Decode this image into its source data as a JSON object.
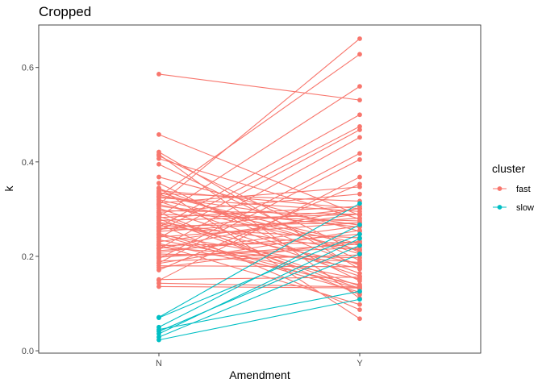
{
  "chart_data": {
    "type": "line",
    "title": "Cropped",
    "xlabel": "Amendment",
    "ylabel": "k",
    "categories": [
      "N",
      "Y"
    ],
    "ylim": [
      -0.005,
      0.69
    ],
    "yticks": [
      0.0,
      0.2,
      0.4,
      0.6
    ],
    "ytick_labels": [
      "0.0",
      "0.2",
      "0.4",
      "0.6"
    ],
    "grid": false,
    "legend": {
      "title": "cluster",
      "position": "right"
    },
    "colors": {
      "fast": "#F8766D",
      "slow": "#00BFC4"
    },
    "series": [
      {
        "name": "fast",
        "pairs": [
          [
            0.586,
            0.531
          ],
          [
            0.458,
            0.287
          ],
          [
            0.421,
            0.173
          ],
          [
            0.416,
            0.111
          ],
          [
            0.413,
            0.208
          ],
          [
            0.407,
            0.279
          ],
          [
            0.395,
            0.191
          ],
          [
            0.368,
            0.253
          ],
          [
            0.355,
            0.148
          ],
          [
            0.344,
            0.181
          ],
          [
            0.339,
            0.301
          ],
          [
            0.336,
            0.205
          ],
          [
            0.333,
            0.317
          ],
          [
            0.331,
            0.226
          ],
          [
            0.327,
            0.266
          ],
          [
            0.324,
            0.295
          ],
          [
            0.32,
            0.223
          ],
          [
            0.317,
            0.164
          ],
          [
            0.313,
            0.347
          ],
          [
            0.31,
            0.214
          ],
          [
            0.306,
            0.262
          ],
          [
            0.302,
            0.158
          ],
          [
            0.297,
            0.289
          ],
          [
            0.293,
            0.119
          ],
          [
            0.289,
            0.275
          ],
          [
            0.285,
            0.137
          ],
          [
            0.282,
            0.306
          ],
          [
            0.279,
            0.132
          ],
          [
            0.276,
            0.289
          ],
          [
            0.272,
            0.213
          ],
          [
            0.268,
            0.087
          ],
          [
            0.264,
            0.271
          ],
          [
            0.26,
            0.239
          ],
          [
            0.257,
            0.301
          ],
          [
            0.253,
            0.281
          ],
          [
            0.249,
            0.131
          ],
          [
            0.246,
            0.175
          ],
          [
            0.241,
            0.271
          ],
          [
            0.235,
            0.152
          ],
          [
            0.231,
            0.29
          ],
          [
            0.227,
            0.14
          ],
          [
            0.223,
            0.23
          ],
          [
            0.219,
            0.187
          ],
          [
            0.216,
            0.302
          ],
          [
            0.212,
            0.247
          ],
          [
            0.208,
            0.264
          ],
          [
            0.205,
            0.197
          ],
          [
            0.201,
            0.218
          ],
          [
            0.198,
            0.226
          ],
          [
            0.19,
            0.203
          ],
          [
            0.185,
            0.255
          ],
          [
            0.18,
            0.178
          ],
          [
            0.176,
            0.232
          ],
          [
            0.151,
            0.156
          ],
          [
            0.143,
            0.135
          ],
          [
            0.136,
            0.133
          ],
          [
            0.31,
            0.661
          ],
          [
            0.327,
            0.628
          ],
          [
            0.284,
            0.56
          ],
          [
            0.262,
            0.5
          ],
          [
            0.254,
            0.475
          ],
          [
            0.239,
            0.468
          ],
          [
            0.216,
            0.452
          ],
          [
            0.195,
            0.418
          ],
          [
            0.186,
            0.405
          ],
          [
            0.149,
            0.368
          ],
          [
            0.171,
            0.353
          ],
          [
            0.345,
            0.068
          ],
          [
            0.293,
            0.332
          ],
          [
            0.27,
            0.184
          ],
          [
            0.245,
            0.124
          ],
          [
            0.224,
            0.098
          ]
        ]
      },
      {
        "name": "slow",
        "pairs": [
          [
            0.071,
            0.312
          ],
          [
            0.07,
            0.247
          ],
          [
            0.05,
            0.267
          ],
          [
            0.045,
            0.126
          ],
          [
            0.041,
            0.223
          ],
          [
            0.036,
            0.238
          ],
          [
            0.029,
            0.205
          ],
          [
            0.023,
            0.109
          ]
        ]
      }
    ]
  }
}
